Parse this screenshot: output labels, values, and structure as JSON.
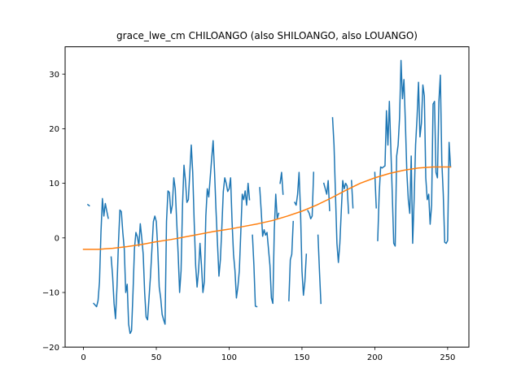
{
  "chart_data": {
    "type": "line",
    "title": "grace_lwe_cm CHILOANGO (also SHILOANGO, also LOUANGO)",
    "xlabel": "",
    "ylabel": "",
    "xlim": [
      -12.6,
      264.6
    ],
    "ylim": [
      -20,
      35
    ],
    "xticks": [
      0,
      50,
      100,
      150,
      200,
      250
    ],
    "yticks": [
      -20,
      -10,
      0,
      10,
      20,
      30
    ],
    "grid": false,
    "legend": "none",
    "colors": {
      "raw": "#1f77b4",
      "trend": "#ff7f0e",
      "axis": "#000000",
      "background": "#ffffff"
    },
    "series": [
      {
        "key": "raw",
        "segments": [
          [
            [
              3,
              6.1
            ],
            [
              4,
              5.9
            ]
          ],
          [
            [
              7,
              -12.0
            ],
            [
              8,
              -12.3
            ],
            [
              9,
              -12.6
            ],
            [
              10,
              -11.5
            ],
            [
              11,
              -8.0
            ],
            [
              12,
              1.0
            ],
            [
              13,
              7.2
            ],
            [
              14,
              4.0
            ],
            [
              15,
              6.3
            ],
            [
              16,
              4.9
            ],
            [
              17,
              3.6
            ]
          ],
          [
            [
              19,
              -3.5
            ],
            [
              20,
              -7.0
            ],
            [
              21,
              -12.0
            ],
            [
              22,
              -14.8
            ],
            [
              23,
              -9.0
            ],
            [
              24,
              -1.0
            ],
            [
              25,
              5.1
            ],
            [
              26,
              4.8
            ],
            [
              27,
              1.0
            ],
            [
              28,
              -2.0
            ],
            [
              29,
              -10.0
            ],
            [
              30,
              -8.5
            ],
            [
              31,
              -15.8
            ],
            [
              32,
              -17.5
            ],
            [
              33,
              -17.0
            ],
            [
              34,
              -10.0
            ],
            [
              35,
              -2.0
            ],
            [
              36,
              1.0
            ],
            [
              37,
              0.2
            ],
            [
              38,
              -1.5
            ],
            [
              39,
              2.6
            ],
            [
              40,
              0.0
            ],
            [
              41,
              -3.0
            ],
            [
              42,
              -10.0
            ],
            [
              43,
              -14.5
            ],
            [
              44,
              -15.0
            ],
            [
              45,
              -11.0
            ],
            [
              46,
              -7.0
            ],
            [
              47,
              -2.0
            ],
            [
              48,
              3.0
            ],
            [
              49,
              4.0
            ],
            [
              50,
              3.0
            ],
            [
              51,
              -2.0
            ],
            [
              52,
              -9.0
            ],
            [
              53,
              -11.0
            ],
            [
              54,
              -14.0
            ],
            [
              55,
              -15.0
            ],
            [
              56,
              -15.8
            ],
            [
              57,
              3.0
            ],
            [
              58,
              8.6
            ],
            [
              59,
              8.3
            ],
            [
              60,
              4.5
            ],
            [
              61,
              6.0
            ],
            [
              62,
              11.0
            ],
            [
              63,
              9.0
            ],
            [
              64,
              3.0
            ],
            [
              65,
              -3.0
            ],
            [
              66,
              -10.0
            ],
            [
              67,
              -6.0
            ],
            [
              68,
              6.0
            ],
            [
              69,
              13.3
            ],
            [
              70,
              10.5
            ],
            [
              71,
              6.5
            ],
            [
              72,
              7.0
            ],
            [
              73,
              12.0
            ],
            [
              74,
              17.0
            ],
            [
              75,
              12.0
            ],
            [
              76,
              3.0
            ],
            [
              77,
              -5.0
            ],
            [
              78,
              -9.0
            ],
            [
              79,
              -6.0
            ],
            [
              80,
              -1.0
            ],
            [
              81,
              -5.0
            ],
            [
              82,
              -10.0
            ],
            [
              83,
              -8.0
            ],
            [
              84,
              4.0
            ],
            [
              85,
              9.0
            ],
            [
              86,
              7.5
            ],
            [
              87,
              11.0
            ],
            [
              88,
              14.5
            ],
            [
              89,
              17.8
            ],
            [
              90,
              12.0
            ],
            [
              91,
              5.0
            ],
            [
              92,
              -1.0
            ],
            [
              93,
              -7.0
            ],
            [
              94,
              -4.0
            ],
            [
              95,
              2.0
            ],
            [
              96,
              8.5
            ],
            [
              97,
              11.0
            ],
            [
              98,
              10.0
            ],
            [
              99,
              8.5
            ],
            [
              100,
              9.0
            ],
            [
              101,
              11.0
            ],
            [
              102,
              3.0
            ],
            [
              103,
              -3.0
            ],
            [
              104,
              -6.0
            ],
            [
              105,
              -11.0
            ],
            [
              106,
              -9.0
            ],
            [
              107,
              -6.0
            ],
            [
              108,
              1.0
            ],
            [
              109,
              8.0
            ],
            [
              110,
              7.0
            ],
            [
              111,
              8.6
            ],
            [
              112,
              6.0
            ],
            [
              113,
              10.0
            ],
            [
              114,
              7.0
            ]
          ],
          [
            [
              116,
              0.5
            ],
            [
              117,
              -5.0
            ],
            [
              118,
              -12.5
            ],
            [
              119,
              -12.6
            ]
          ],
          [
            [
              121,
              9.2
            ],
            [
              122,
              5.0
            ],
            [
              123,
              0.3
            ],
            [
              124,
              1.5
            ],
            [
              125,
              0.5
            ],
            [
              126,
              1.0
            ],
            [
              127,
              -2.0
            ],
            [
              128,
              -5.0
            ],
            [
              129,
              -11.0
            ],
            [
              130,
              -12.0
            ],
            [
              131,
              1.5
            ],
            [
              132,
              8.0
            ],
            [
              133,
              3.5
            ],
            [
              134,
              4.5
            ]
          ],
          [
            [
              135,
              10.0
            ],
            [
              136,
              12.0
            ],
            [
              137,
              8.0
            ]
          ],
          [
            [
              141,
              -11.5
            ],
            [
              142,
              -4.0
            ],
            [
              143,
              -3.0
            ],
            [
              144,
              3.0
            ]
          ],
          [
            [
              145,
              6.5
            ],
            [
              146,
              6.0
            ],
            [
              147,
              8.0
            ],
            [
              148,
              12.0
            ],
            [
              149,
              5.0
            ],
            [
              150,
              -6.0
            ],
            [
              151,
              -10.5
            ],
            [
              152,
              -8.0
            ],
            [
              153,
              -3.0
            ]
          ],
          [
            [
              154,
              5.0
            ],
            [
              155,
              4.5
            ],
            [
              156,
              3.5
            ],
            [
              157,
              4.0
            ],
            [
              158,
              12.0
            ]
          ],
          [
            [
              161,
              0.5
            ],
            [
              162,
              -6.0
            ],
            [
              163,
              -12.0
            ]
          ],
          [
            [
              165,
              10.0
            ],
            [
              166,
              9.0
            ],
            [
              167,
              8.0
            ],
            [
              168,
              10.5
            ],
            [
              169,
              5.0
            ]
          ],
          [
            [
              171,
              22.0
            ],
            [
              172,
              17.0
            ],
            [
              173,
              8.0
            ],
            [
              174,
              -1.0
            ],
            [
              175,
              -4.5
            ],
            [
              176,
              -1.0
            ],
            [
              177,
              5.0
            ],
            [
              178,
              10.5
            ],
            [
              179,
              9.0
            ],
            [
              180,
              10.0
            ],
            [
              181,
              9.5
            ],
            [
              182,
              4.5
            ]
          ],
          [
            [
              184,
              10.5
            ],
            [
              185,
              5.5
            ]
          ],
          [
            [
              200,
              12.0
            ],
            [
              201,
              5.5
            ]
          ],
          [
            [
              202,
              -0.5
            ],
            [
              203,
              8.0
            ],
            [
              204,
              13.0
            ],
            [
              205,
              12.8
            ],
            [
              206,
              13.0
            ],
            [
              207,
              13.2
            ],
            [
              208,
              23.3
            ],
            [
              209,
              17.0
            ],
            [
              210,
              25.0
            ],
            [
              211,
              16.5
            ],
            [
              212,
              8.0
            ],
            [
              213,
              -1.0
            ],
            [
              214,
              -1.5
            ],
            [
              215,
              15.0
            ],
            [
              216,
              17.0
            ],
            [
              217,
              22.0
            ],
            [
              218,
              32.5
            ],
            [
              219,
              25.5
            ],
            [
              220,
              29.0
            ],
            [
              221,
              21.0
            ],
            [
              222,
              12.0
            ],
            [
              223,
              7.0
            ],
            [
              224,
              4.5
            ],
            [
              225,
              15.0
            ],
            [
              226,
              -1.0
            ],
            [
              227,
              7.0
            ],
            [
              228,
              17.0
            ],
            [
              229,
              22.0
            ],
            [
              230,
              28.5
            ],
            [
              231,
              18.5
            ],
            [
              232,
              21.0
            ],
            [
              233,
              28.0
            ],
            [
              234,
              26.0
            ],
            [
              235,
              11.0
            ],
            [
              236,
              7.0
            ],
            [
              237,
              8.0
            ],
            [
              238,
              2.5
            ],
            [
              239,
              6.0
            ],
            [
              240,
              24.5
            ],
            [
              241,
              25.0
            ],
            [
              242,
              12.0
            ],
            [
              243,
              11.0
            ],
            [
              244,
              25.0
            ],
            [
              245,
              29.8
            ],
            [
              246,
              14.0
            ],
            [
              247,
              8.0
            ],
            [
              248,
              -0.8
            ],
            [
              249,
              -1.0
            ],
            [
              250,
              -0.5
            ],
            [
              251,
              17.5
            ],
            [
              252,
              13.0
            ]
          ]
        ]
      },
      {
        "key": "trend",
        "points": [
          [
            0,
            -2.1
          ],
          [
            10,
            -2.1
          ],
          [
            20,
            -1.9
          ],
          [
            30,
            -1.6
          ],
          [
            40,
            -1.2
          ],
          [
            50,
            -0.7
          ],
          [
            60,
            -0.3
          ],
          [
            70,
            0.2
          ],
          [
            80,
            0.7
          ],
          [
            90,
            1.2
          ],
          [
            100,
            1.6
          ],
          [
            110,
            2.1
          ],
          [
            120,
            2.6
          ],
          [
            130,
            3.2
          ],
          [
            140,
            4.0
          ],
          [
            150,
            4.9
          ],
          [
            160,
            6.0
          ],
          [
            170,
            7.3
          ],
          [
            180,
            8.7
          ],
          [
            190,
            10.0
          ],
          [
            200,
            11.0
          ],
          [
            210,
            11.8
          ],
          [
            220,
            12.4
          ],
          [
            230,
            12.8
          ],
          [
            240,
            13.0
          ],
          [
            250,
            13.0
          ],
          [
            252,
            13.0
          ]
        ]
      }
    ]
  }
}
